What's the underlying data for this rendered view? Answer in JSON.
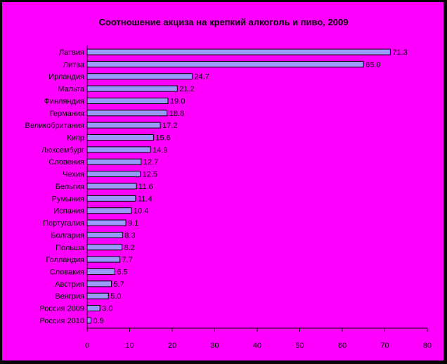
{
  "chart_data": {
    "type": "bar",
    "orientation": "horizontal",
    "title": "Соотношение акциза на крепкий алкоголь и пиво, 2009",
    "categories": [
      "Латвия",
      "Литва",
      "Ирландия",
      "Мальта",
      "Финляндия",
      "Германия",
      "Великобритания",
      "Кипр",
      "Люксембург",
      "Словения",
      "Чехия",
      "Бельгия",
      "Румыния",
      "Испания",
      "Португалия",
      "Болгария",
      "Польша",
      "Голландия",
      "Словакия",
      "Австрия",
      "Венгрия",
      "Россия 2009",
      "Россия 2010"
    ],
    "values": [
      71.3,
      65.0,
      24.7,
      21.2,
      19.0,
      18.8,
      17.2,
      15.6,
      14.9,
      12.7,
      12.5,
      11.6,
      11.4,
      10.4,
      9.1,
      8.3,
      8.2,
      7.7,
      6.5,
      5.7,
      5.0,
      3.0,
      0.9
    ],
    "value_labels": [
      "71.3",
      "65.0",
      "24.7",
      "21.2",
      "19.0",
      "18.8",
      "17.2",
      "15.6",
      "14.9",
      "12.7",
      "12.5",
      "11.6",
      "11.4",
      "10.4",
      "9.1",
      "8.3",
      "8.2",
      "7.7",
      "6.5",
      "5.7",
      "5.0",
      "3.0",
      "0.9"
    ],
    "xlim": [
      0,
      80
    ],
    "x_ticks": [
      0,
      10,
      20,
      30,
      40,
      50,
      60,
      70,
      80
    ],
    "grid": false,
    "legend": "none",
    "xlabel": "",
    "ylabel": "",
    "colors": {
      "bar_fill": "#9999FF",
      "bar_stroke": "#000000",
      "background": "#FF00FF",
      "frame": "#000000"
    }
  }
}
